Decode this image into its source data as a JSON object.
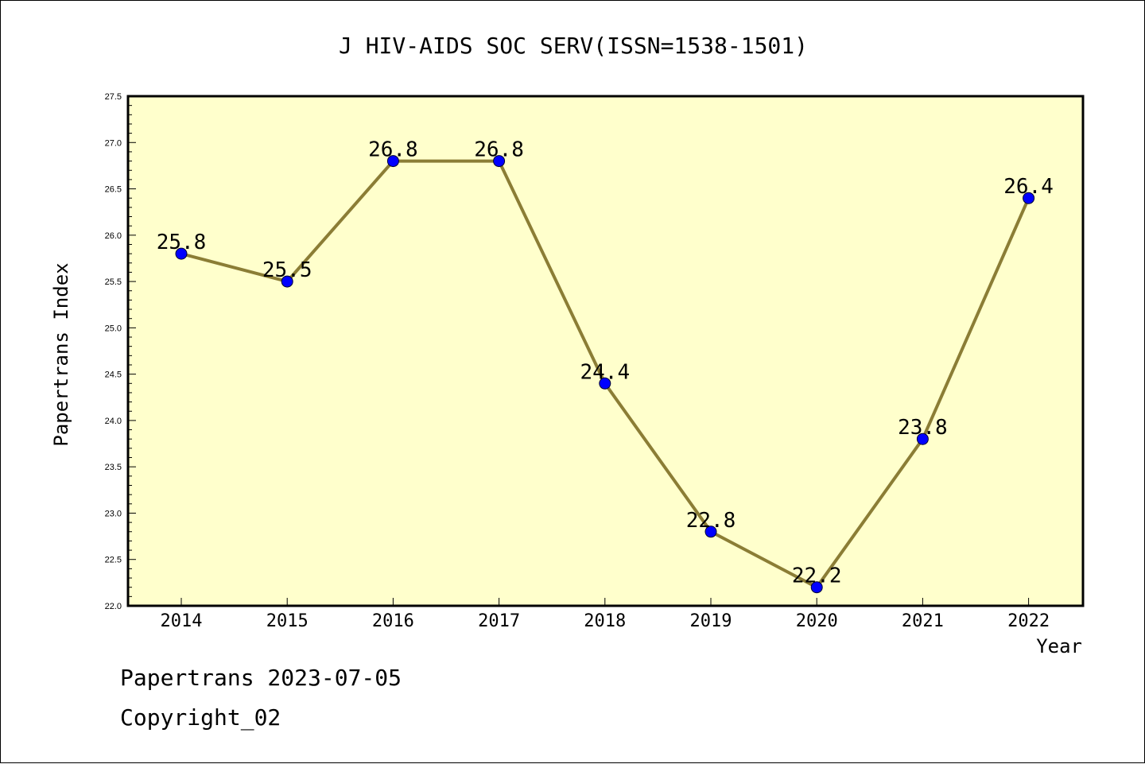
{
  "footer": {
    "line1": "Papertrans 2023-07-05",
    "line2": "Copyright_02"
  },
  "colors": {
    "plot_background": "#ffffcc",
    "line": "#8b7d35",
    "marker": "#0000ff",
    "axis": "#000000"
  },
  "chart_data": {
    "type": "line",
    "title": "J HIV-AIDS SOC SERV(ISSN=1538-1501)",
    "xlabel": "Year",
    "ylabel": "Papertrans Index",
    "categories": [
      "2014",
      "2015",
      "2016",
      "2017",
      "2018",
      "2019",
      "2020",
      "2021",
      "2022"
    ],
    "values": [
      25.8,
      25.5,
      26.8,
      26.8,
      24.4,
      22.8,
      22.2,
      23.8,
      26.4
    ],
    "data_labels": [
      "25.8",
      "25.5",
      "26.8",
      "26.8",
      "24.4",
      "22.8",
      "22.2",
      "23.8",
      "26.4"
    ],
    "ylim": [
      22.0,
      27.5
    ],
    "yticks": [
      "22.0",
      "22.5",
      "23.0",
      "23.5",
      "24.0",
      "24.5",
      "25.0",
      "25.5",
      "26.0",
      "26.5",
      "27.0",
      "27.5"
    ],
    "grid": false,
    "legend": "none"
  }
}
